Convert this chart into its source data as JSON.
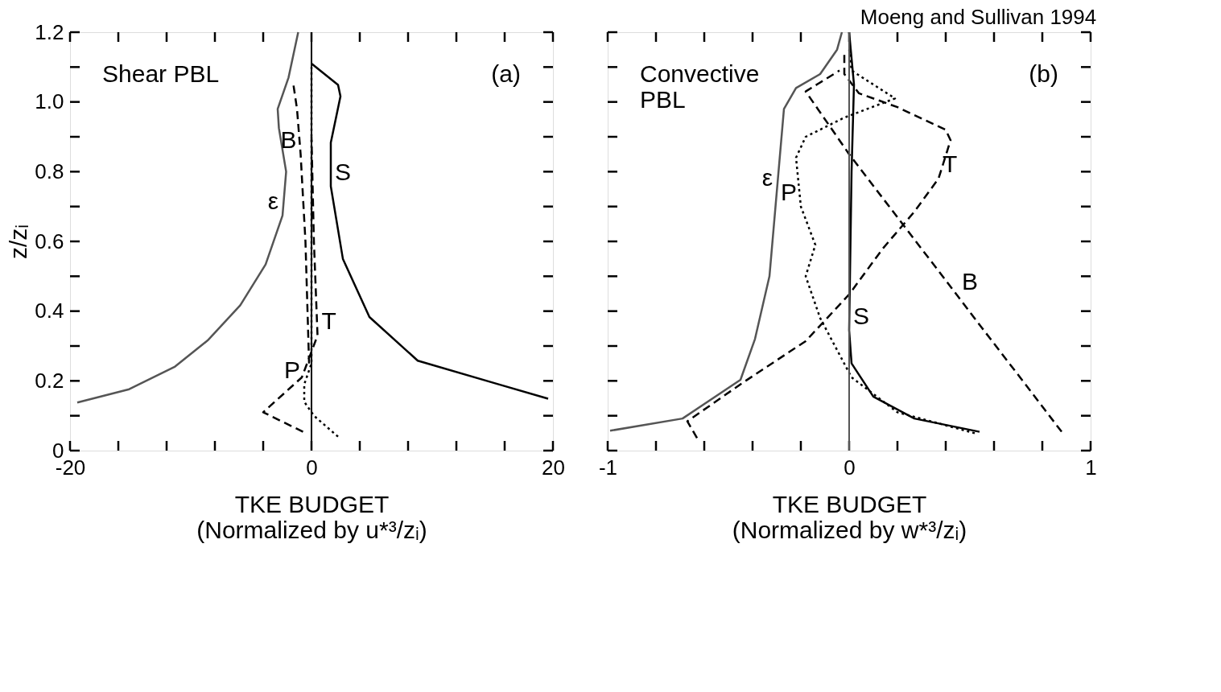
{
  "chart_data": [
    {
      "type": "line",
      "xlabel": "TKE BUDGET\n(Normalized by u*³/zᵢ)",
      "ylabel": "z/zᵢ",
      "xlim": [
        -20,
        20
      ],
      "ylim": [
        0,
        1.2
      ],
      "xticks": [
        -20,
        {
          "value": -16,
          "label": null
        },
        {
          "value": -12,
          "label": null
        },
        {
          "value": -8,
          "label": null
        },
        {
          "value": -4,
          "label": null
        },
        0,
        {
          "value": 4,
          "label": null
        },
        {
          "value": 8,
          "label": null
        },
        {
          "value": 12,
          "label": null
        },
        {
          "value": 16,
          "label": null
        },
        20
      ],
      "yticks": [
        0,
        {
          "value": 0.1,
          "label": null
        },
        0.2,
        {
          "value": 0.3,
          "label": null
        },
        0.4,
        {
          "value": 0.5,
          "label": null
        },
        0.6,
        {
          "value": 0.7,
          "label": null
        },
        0.8,
        {
          "value": 0.9,
          "label": null
        },
        {
          "value": 1.0,
          "label": "1.0"
        },
        {
          "value": 1.1,
          "label": null
        },
        1.2
      ],
      "ref_lines": [
        {
          "axis": "x",
          "value": 0,
          "color": "#000000",
          "line_style": "solid"
        }
      ],
      "series": [
        {
          "name": "ε",
          "color": "#555555",
          "line_style": "solid",
          "x": [
            -19.4,
            -15.1,
            -11.3,
            -8.6,
            -5.9,
            -3.8,
            -2.4,
            -2.1,
            -2.7,
            -2.8,
            -1.9,
            -1.1
          ],
          "values": [
            0.138,
            0.176,
            0.241,
            0.316,
            0.417,
            0.534,
            0.674,
            0.8,
            0.925,
            0.98,
            1.07,
            1.2
          ]
        },
        {
          "name": "S",
          "color": "#000000",
          "line_style": "solid",
          "x": [
            19.6,
            15.5,
            8.8,
            4.8,
            2.6,
            1.6,
            1.6,
            2.4,
            2.2,
            0
          ],
          "values": [
            0.149,
            0.19,
            0.258,
            0.383,
            0.55,
            0.758,
            0.883,
            1.016,
            1.049,
            1.11
          ]
        },
        {
          "name": "P",
          "color": "#000000",
          "line_style": "dotted",
          "x": [
            2.2,
            0.2,
            -0.6,
            -0.6,
            0,
            0,
            0
          ],
          "values": [
            0.04,
            0.1,
            0.14,
            0.19,
            0.25,
            0.7,
            1.1
          ]
        },
        {
          "name": "T",
          "color": "#000000",
          "line_style": "dashed",
          "x": [
            -0.7,
            -4.0,
            -0.8,
            0.5,
            0.2,
            0
          ],
          "values": [
            0.054,
            0.11,
            0.21,
            0.33,
            0.6,
            0.9
          ]
        },
        {
          "name": "B",
          "color": "#000000",
          "line_style": "dashed",
          "x": [
            -0.2,
            -0.5,
            -0.9,
            -1.2,
            -1.5
          ],
          "values": [
            0.25,
            0.6,
            0.85,
            0.98,
            1.05
          ]
        }
      ],
      "annotations": [
        "Shear PBL",
        "(a)"
      ]
    },
    {
      "type": "line",
      "title": "Moeng and Sullivan 1994",
      "xlabel": "TKE BUDGET\n(Normalized by w*³/zᵢ)",
      "xlim": [
        -1,
        1
      ],
      "ylim": [
        0,
        1.2
      ],
      "tick_labels": "x",
      "xticks": [
        -1,
        {
          "value": -0.8,
          "label": null
        },
        {
          "value": -0.6,
          "label": null
        },
        {
          "value": -0.4,
          "label": null
        },
        {
          "value": -0.2,
          "label": null
        },
        0,
        {
          "value": 0.2,
          "label": null
        },
        {
          "value": 0.4,
          "label": null
        },
        {
          "value": 0.6,
          "label": null
        },
        {
          "value": 0.8,
          "label": null
        },
        1
      ],
      "yticks": [
        0,
        0.1,
        0.2,
        0.3,
        0.4,
        0.5,
        0.6,
        0.7,
        0.8,
        0.9,
        1.0,
        1.1,
        1.2
      ],
      "ref_lines": [
        {
          "axis": "x",
          "value": 0,
          "color": "#555555",
          "line_style": "solid"
        }
      ],
      "series": [
        {
          "name": "ε",
          "color": "#555555",
          "line_style": "solid",
          "x": [
            -0.99,
            -0.69,
            -0.45,
            -0.39,
            -0.33,
            -0.3,
            -0.27,
            -0.22,
            -0.12,
            -0.05,
            -0.03
          ],
          "values": [
            0.057,
            0.092,
            0.203,
            0.32,
            0.5,
            0.74,
            0.98,
            1.04,
            1.08,
            1.15,
            1.2
          ]
        },
        {
          "name": "S",
          "color": "#000000",
          "line_style": "solid",
          "x": [
            0.54,
            0.27,
            0.1,
            0.01,
            0,
            0.01,
            0.02,
            0
          ],
          "values": [
            0.054,
            0.092,
            0.155,
            0.25,
            0.345,
            0.8,
            1.05,
            1.2
          ]
        },
        {
          "name": "P",
          "color": "#000000",
          "line_style": "dotted",
          "x": [
            0.52,
            0.2,
            0.01,
            -0.12,
            -0.18,
            -0.14,
            -0.2,
            -0.22,
            -0.18,
            -0.02,
            0.19,
            0.01,
            0
          ],
          "values": [
            0.05,
            0.11,
            0.21,
            0.38,
            0.5,
            0.59,
            0.7,
            0.84,
            0.9,
            0.955,
            1.01,
            1.09,
            1.15
          ]
        },
        {
          "name": "T",
          "color": "#000000",
          "line_style": "dashed",
          "x": [
            -0.63,
            -0.67,
            -0.44,
            -0.18,
            0,
            0.14,
            0.27,
            0.37,
            0.42,
            0.4,
            0.2,
            0.04,
            -0.02,
            -0.02
          ],
          "values": [
            0.036,
            0.084,
            0.195,
            0.314,
            0.448,
            0.58,
            0.685,
            0.78,
            0.89,
            0.92,
            0.985,
            1.025,
            1.08,
            1.14
          ]
        },
        {
          "name": "B",
          "color": "#000000",
          "line_style": "dashed",
          "x": [
            0.88,
            0.75,
            0.62,
            0.55,
            0.45,
            0,
            -0.18,
            -0.04
          ],
          "values": [
            0.054,
            0.172,
            0.289,
            0.352,
            0.443,
            0.85,
            1.03,
            1.09
          ]
        }
      ],
      "annotations": [
        "Convective\nPBL",
        "(b)"
      ]
    }
  ]
}
